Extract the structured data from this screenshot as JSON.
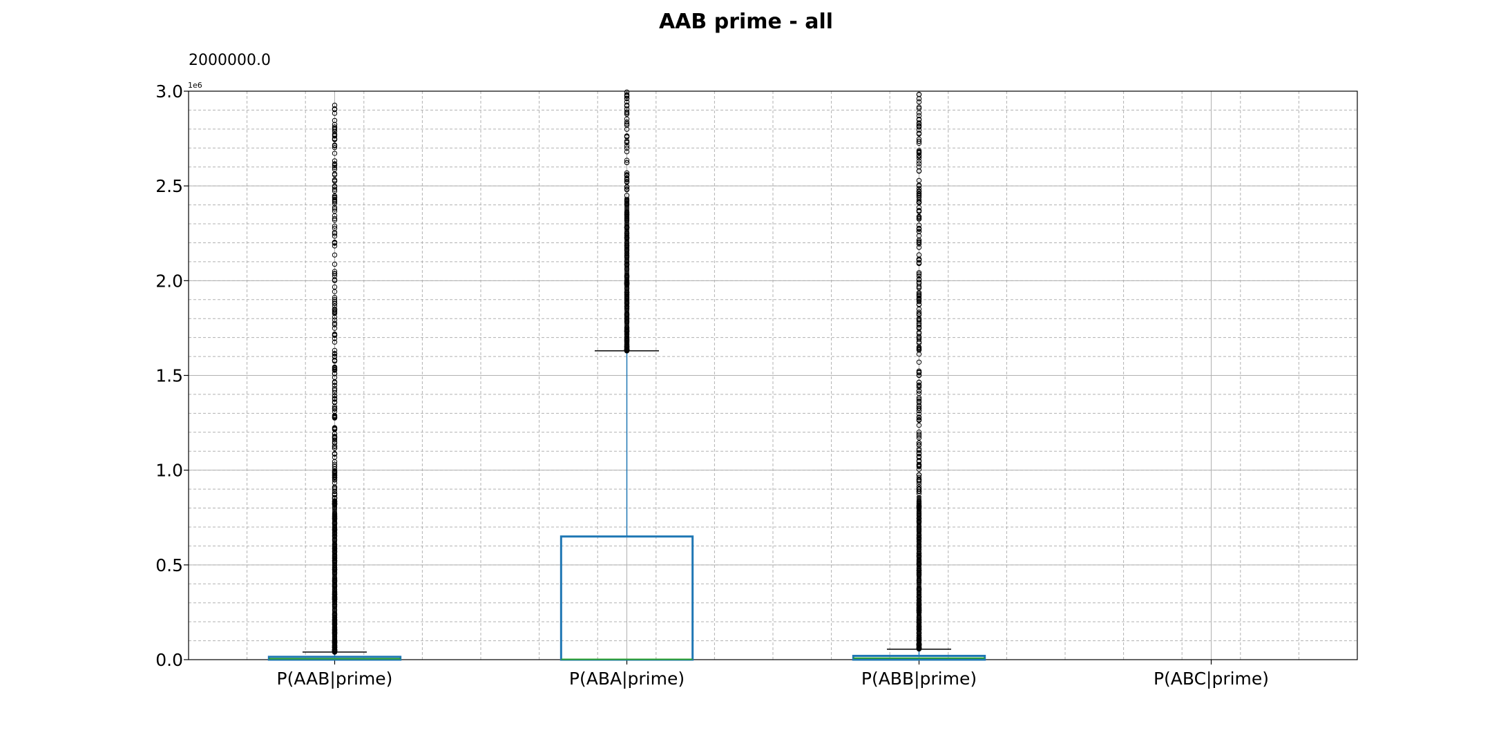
{
  "chart_data": {
    "type": "box",
    "title": "AAB prime - all",
    "annotation": "2000000.0",
    "y_exponent_label": "1e6",
    "xlabel": "",
    "ylabel": "",
    "ylim": [
      0,
      3000000
    ],
    "yticks": [
      0,
      500000,
      1000000,
      1500000,
      2000000,
      2500000,
      3000000
    ],
    "ytick_labels": [
      "0.0",
      "0.5",
      "1.0",
      "1.5",
      "2.0",
      "2.5",
      "3.0"
    ],
    "grid": true,
    "minor_grid": true,
    "categories": [
      "P(AAB|prime)",
      "P(ABA|prime)",
      "P(ABB|prime)",
      "P(ABC|prime)"
    ],
    "boxes": [
      {
        "name": "P(AAB|prime)",
        "q1": 0,
        "median": 5000,
        "q3": 15000,
        "whisker_low": 0,
        "whisker_high": 40000,
        "outliers_from": 40000,
        "outliers_to": 2950000,
        "has_data": true
      },
      {
        "name": "P(ABA|prime)",
        "q1": 0,
        "median": 2000,
        "q3": 650000,
        "whisker_low": 0,
        "whisker_high": 1630000,
        "outliers_from": 1630000,
        "outliers_to": 3000000,
        "has_data": true
      },
      {
        "name": "P(ABB|prime)",
        "q1": 0,
        "median": 8000,
        "q3": 20000,
        "whisker_low": 0,
        "whisker_high": 55000,
        "outliers_from": 55000,
        "outliers_to": 3000000,
        "has_data": true
      },
      {
        "name": "P(ABC|prime)",
        "has_data": false
      }
    ],
    "colors": {
      "box": "#1f77b4",
      "median": "#2ca02c",
      "cap": "#000000",
      "outlier": "#000000",
      "grid": "#b0b0b0",
      "axes": "#000000"
    }
  }
}
